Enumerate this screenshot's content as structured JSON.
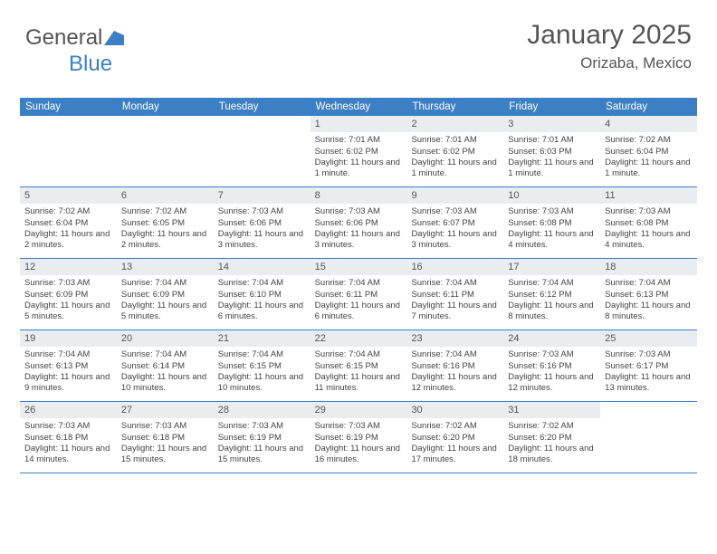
{
  "brand": {
    "part1": "General",
    "part2": "Blue"
  },
  "colors": {
    "accent": "#3b7fc4",
    "header_bg": "#3b7fc4",
    "cell_head_bg": "#e9edf0",
    "text": "#555555",
    "body_text": "#444444"
  },
  "title": "January 2025",
  "location": "Orizaba, Mexico",
  "day_names": [
    "Sunday",
    "Monday",
    "Tuesday",
    "Wednesday",
    "Thursday",
    "Friday",
    "Saturday"
  ],
  "weeks": [
    [
      {
        "empty": true
      },
      {
        "empty": true
      },
      {
        "empty": true
      },
      {
        "num": "1",
        "sunrise": "7:01 AM",
        "sunset": "6:02 PM",
        "daylight": "11 hours and 1 minute."
      },
      {
        "num": "2",
        "sunrise": "7:01 AM",
        "sunset": "6:02 PM",
        "daylight": "11 hours and 1 minute."
      },
      {
        "num": "3",
        "sunrise": "7:01 AM",
        "sunset": "6:03 PM",
        "daylight": "11 hours and 1 minute."
      },
      {
        "num": "4",
        "sunrise": "7:02 AM",
        "sunset": "6:04 PM",
        "daylight": "11 hours and 1 minute."
      }
    ],
    [
      {
        "num": "5",
        "sunrise": "7:02 AM",
        "sunset": "6:04 PM",
        "daylight": "11 hours and 2 minutes."
      },
      {
        "num": "6",
        "sunrise": "7:02 AM",
        "sunset": "6:05 PM",
        "daylight": "11 hours and 2 minutes."
      },
      {
        "num": "7",
        "sunrise": "7:03 AM",
        "sunset": "6:06 PM",
        "daylight": "11 hours and 3 minutes."
      },
      {
        "num": "8",
        "sunrise": "7:03 AM",
        "sunset": "6:06 PM",
        "daylight": "11 hours and 3 minutes."
      },
      {
        "num": "9",
        "sunrise": "7:03 AM",
        "sunset": "6:07 PM",
        "daylight": "11 hours and 3 minutes."
      },
      {
        "num": "10",
        "sunrise": "7:03 AM",
        "sunset": "6:08 PM",
        "daylight": "11 hours and 4 minutes."
      },
      {
        "num": "11",
        "sunrise": "7:03 AM",
        "sunset": "6:08 PM",
        "daylight": "11 hours and 4 minutes."
      }
    ],
    [
      {
        "num": "12",
        "sunrise": "7:03 AM",
        "sunset": "6:09 PM",
        "daylight": "11 hours and 5 minutes."
      },
      {
        "num": "13",
        "sunrise": "7:04 AM",
        "sunset": "6:09 PM",
        "daylight": "11 hours and 5 minutes."
      },
      {
        "num": "14",
        "sunrise": "7:04 AM",
        "sunset": "6:10 PM",
        "daylight": "11 hours and 6 minutes."
      },
      {
        "num": "15",
        "sunrise": "7:04 AM",
        "sunset": "6:11 PM",
        "daylight": "11 hours and 6 minutes."
      },
      {
        "num": "16",
        "sunrise": "7:04 AM",
        "sunset": "6:11 PM",
        "daylight": "11 hours and 7 minutes."
      },
      {
        "num": "17",
        "sunrise": "7:04 AM",
        "sunset": "6:12 PM",
        "daylight": "11 hours and 8 minutes."
      },
      {
        "num": "18",
        "sunrise": "7:04 AM",
        "sunset": "6:13 PM",
        "daylight": "11 hours and 8 minutes."
      }
    ],
    [
      {
        "num": "19",
        "sunrise": "7:04 AM",
        "sunset": "6:13 PM",
        "daylight": "11 hours and 9 minutes."
      },
      {
        "num": "20",
        "sunrise": "7:04 AM",
        "sunset": "6:14 PM",
        "daylight": "11 hours and 10 minutes."
      },
      {
        "num": "21",
        "sunrise": "7:04 AM",
        "sunset": "6:15 PM",
        "daylight": "11 hours and 10 minutes."
      },
      {
        "num": "22",
        "sunrise": "7:04 AM",
        "sunset": "6:15 PM",
        "daylight": "11 hours and 11 minutes."
      },
      {
        "num": "23",
        "sunrise": "7:04 AM",
        "sunset": "6:16 PM",
        "daylight": "11 hours and 12 minutes."
      },
      {
        "num": "24",
        "sunrise": "7:03 AM",
        "sunset": "6:16 PM",
        "daylight": "11 hours and 12 minutes."
      },
      {
        "num": "25",
        "sunrise": "7:03 AM",
        "sunset": "6:17 PM",
        "daylight": "11 hours and 13 minutes."
      }
    ],
    [
      {
        "num": "26",
        "sunrise": "7:03 AM",
        "sunset": "6:18 PM",
        "daylight": "11 hours and 14 minutes."
      },
      {
        "num": "27",
        "sunrise": "7:03 AM",
        "sunset": "6:18 PM",
        "daylight": "11 hours and 15 minutes."
      },
      {
        "num": "28",
        "sunrise": "7:03 AM",
        "sunset": "6:19 PM",
        "daylight": "11 hours and 15 minutes."
      },
      {
        "num": "29",
        "sunrise": "7:03 AM",
        "sunset": "6:19 PM",
        "daylight": "11 hours and 16 minutes."
      },
      {
        "num": "30",
        "sunrise": "7:02 AM",
        "sunset": "6:20 PM",
        "daylight": "11 hours and 17 minutes."
      },
      {
        "num": "31",
        "sunrise": "7:02 AM",
        "sunset": "6:20 PM",
        "daylight": "11 hours and 18 minutes."
      },
      {
        "empty": true
      }
    ]
  ],
  "labels": {
    "sunrise_prefix": "Sunrise: ",
    "sunset_prefix": "Sunset: ",
    "daylight_prefix": "Daylight: "
  }
}
